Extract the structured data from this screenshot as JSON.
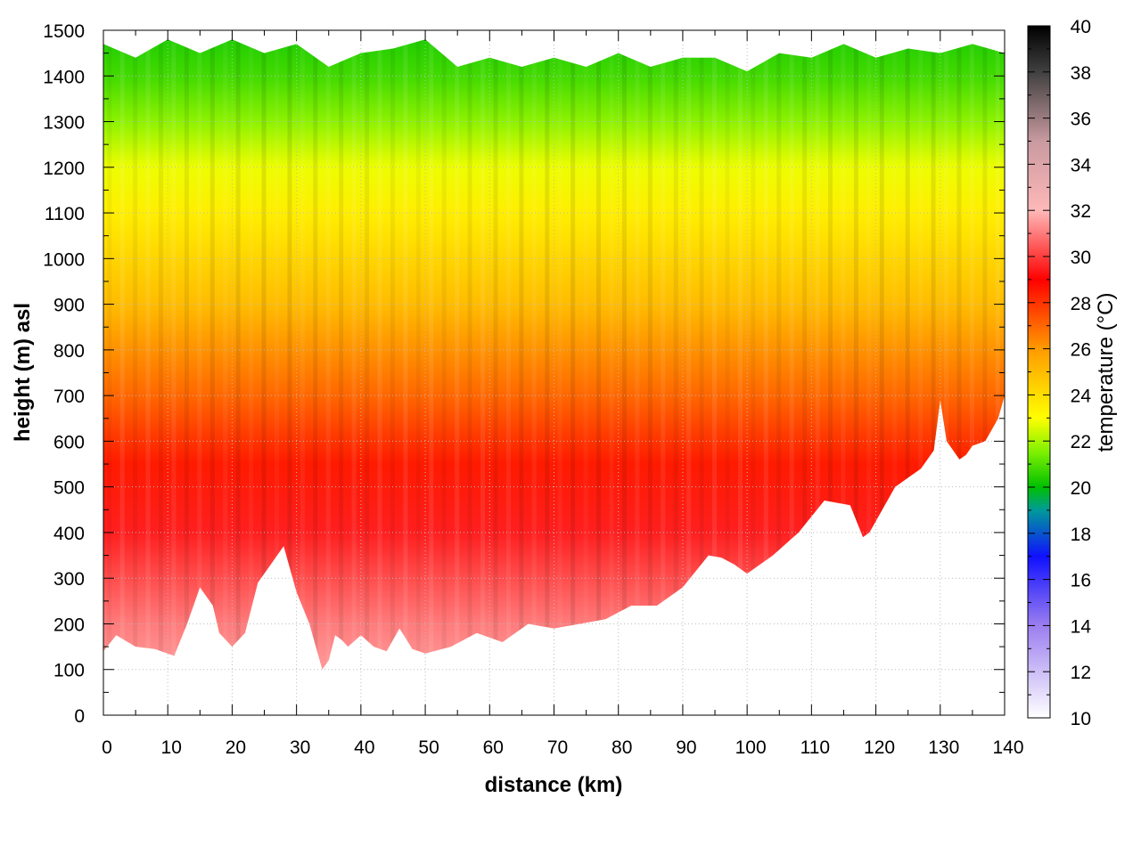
{
  "chart_data": {
    "type": "heatmap",
    "title": "",
    "xlabel": "distance (km)",
    "ylabel": "height (m) asl",
    "colorbar_label": "temperature (°C)",
    "xlim": [
      0,
      140
    ],
    "ylim": [
      0,
      1500
    ],
    "clim": [
      10,
      40
    ],
    "grid": true,
    "x_ticks": [
      "0",
      "10",
      "20",
      "30",
      "40",
      "50",
      "60",
      "70",
      "80",
      "90",
      "100",
      "110",
      "120",
      "130",
      "140"
    ],
    "y_ticks": [
      "0",
      "100",
      "200",
      "300",
      "400",
      "500",
      "600",
      "700",
      "800",
      "900",
      "1000",
      "1100",
      "1200",
      "1300",
      "1400",
      "1500"
    ],
    "colorbar_ticks": [
      "10",
      "12",
      "14",
      "16",
      "18",
      "20",
      "22",
      "24",
      "26",
      "28",
      "30",
      "32",
      "34",
      "36",
      "38",
      "40"
    ],
    "colormap": [
      {
        "t": 10,
        "color": "#ffffff"
      },
      {
        "t": 14,
        "color": "#9b7ef0"
      },
      {
        "t": 17,
        "color": "#1010ff"
      },
      {
        "t": 19,
        "color": "#009a9a"
      },
      {
        "t": 20,
        "color": "#00c000"
      },
      {
        "t": 21.5,
        "color": "#7cf000"
      },
      {
        "t": 23,
        "color": "#ffff00"
      },
      {
        "t": 26,
        "color": "#ff9a00"
      },
      {
        "t": 29,
        "color": "#ff0000"
      },
      {
        "t": 32,
        "color": "#ffb8b8"
      },
      {
        "t": 35,
        "color": "#c89aa0"
      },
      {
        "t": 38,
        "color": "#404040"
      },
      {
        "t": 40,
        "color": "#000000"
      }
    ],
    "terrain_height": {
      "x": [
        0,
        2,
        5,
        8,
        11,
        13,
        15,
        17,
        18,
        20,
        22,
        24,
        26,
        28,
        30,
        32,
        34,
        35,
        36,
        37,
        38,
        40,
        42,
        44,
        46,
        48,
        50,
        54,
        58,
        62,
        66,
        70,
        74,
        78,
        82,
        86,
        90,
        94,
        96,
        98,
        100,
        104,
        108,
        112,
        116,
        118,
        119,
        121,
        123,
        125,
        127,
        129,
        130,
        131,
        133,
        134,
        135,
        137,
        139,
        140
      ],
      "y": [
        140,
        175,
        150,
        145,
        130,
        200,
        280,
        240,
        180,
        150,
        180,
        290,
        330,
        370,
        270,
        200,
        100,
        120,
        175,
        165,
        150,
        175,
        150,
        140,
        190,
        145,
        135,
        150,
        180,
        160,
        200,
        190,
        200,
        210,
        240,
        240,
        280,
        350,
        345,
        330,
        310,
        350,
        400,
        470,
        460,
        390,
        400,
        450,
        500,
        520,
        540,
        580,
        690,
        600,
        560,
        570,
        590,
        600,
        650,
        700
      ]
    },
    "upper_boundary": {
      "x": [
        0,
        5,
        10,
        15,
        20,
        25,
        30,
        35,
        40,
        45,
        50,
        55,
        60,
        65,
        70,
        75,
        80,
        85,
        90,
        95,
        100,
        105,
        110,
        115,
        120,
        125,
        130,
        135,
        140
      ],
      "y": [
        1470,
        1440,
        1480,
        1450,
        1480,
        1450,
        1470,
        1420,
        1450,
        1460,
        1480,
        1420,
        1440,
        1420,
        1440,
        1420,
        1450,
        1420,
        1440,
        1440,
        1410,
        1450,
        1440,
        1470,
        1440,
        1460,
        1450,
        1470,
        1450
      ]
    },
    "temperature_profile": {
      "height": [
        0,
        200,
        400,
        550,
        700,
        900,
        1100,
        1200,
        1300,
        1400,
        1500
      ],
      "temperature": [
        32,
        31,
        29.5,
        28.5,
        27,
        25,
        23.5,
        22.8,
        21.7,
        20.8,
        20.3
      ]
    }
  }
}
